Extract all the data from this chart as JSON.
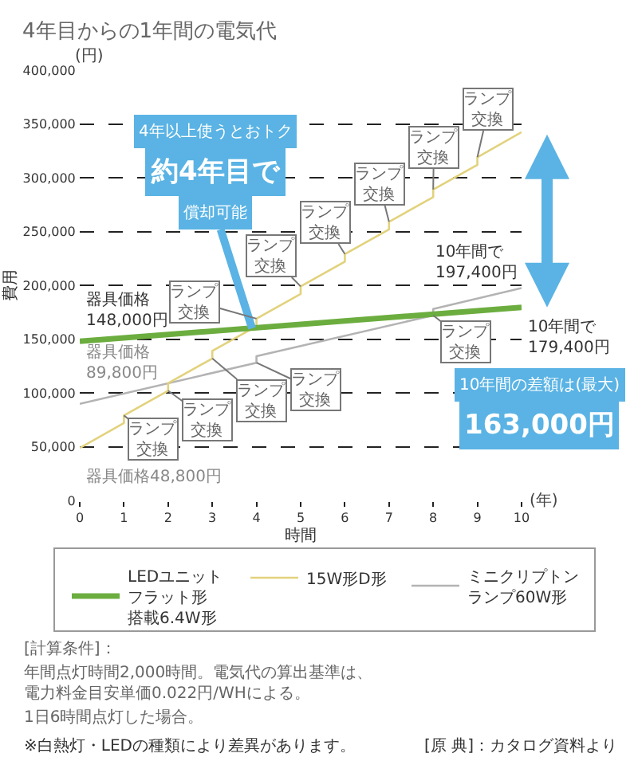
{
  "chart_data": {
    "type": "line",
    "title": "4年目からの1年間の電気代",
    "xlabel": "時間",
    "ylabel": "費用",
    "xlim": [
      0,
      10
    ],
    "xticks": [
      0,
      1,
      2,
      3,
      4,
      5,
      6,
      7,
      8,
      9,
      10
    ],
    "ylim": [
      0,
      400000
    ],
    "yticks": [
      0,
      {
        "value": 50000,
        "label": "50,000"
      },
      {
        "value": 100000,
        "label": "100,000"
      },
      {
        "value": 150000,
        "label": "150,000"
      },
      {
        "value": 200000,
        "label": "200,000"
      },
      {
        "value": 250000,
        "label": "250,000"
      },
      {
        "value": 300000,
        "label": "300,000"
      },
      {
        "value": 350000,
        "label": "350,000"
      },
      {
        "value": 400000,
        "label": "400,000"
      }
    ],
    "grid": "y",
    "legend": "bottom",
    "series": [
      {
        "name": "LEDユニットフラット形搭載6.4W形",
        "color": "#6cad3f",
        "x": [
          0,
          10
        ],
        "values": [
          148000,
          179400
        ]
      },
      {
        "name": "15W形D形",
        "color": "#e2d27c",
        "x": [
          0,
          1,
          1,
          2,
          2,
          3,
          3,
          4,
          4,
          5,
          5,
          6,
          6,
          7,
          7,
          8,
          8,
          9,
          9,
          10
        ],
        "values": [
          48800,
          72000,
          79000,
          102000,
          109000,
          132000,
          139000,
          162000,
          169000,
          192000,
          199000,
          222000,
          229000,
          252000,
          259000,
          282000,
          289000,
          312000,
          319000,
          342400
        ]
      },
      {
        "name": "ミニクリプトンランプ60W形",
        "color": "#b3b3b3",
        "x": [
          0,
          4,
          4,
          8,
          8,
          10
        ],
        "values": [
          89800,
          128000,
          134000,
          172000,
          178000,
          197400
        ]
      }
    ],
    "annotations": [
      {
        "text": "器具価格148,000円",
        "x": 0,
        "y": 148000
      },
      {
        "text": "器具価格89,800円",
        "x": 0,
        "y": 89800
      },
      {
        "text": "器具価格48,800円",
        "x": 0,
        "y": 48800
      },
      {
        "text": "10年間で197,400円",
        "x": 10,
        "y": 197400
      },
      {
        "text": "10年間で179,400円",
        "x": 10,
        "y": 179400
      },
      "4年以上使うとおトク",
      "約4年目で",
      {
        "text": "償却可能",
        "x": 3.9,
        "y": 160000
      },
      {
        "text": "ランプ交換",
        "x": 1,
        "y": 79000
      },
      {
        "text": "ランプ交換",
        "x": 2,
        "y": 102000
      },
      {
        "text": "ランプ交換",
        "x": 3,
        "y": 132000
      },
      {
        "text": "ランプ交換",
        "x": 4,
        "y": 128000
      },
      {
        "text": "ランプ交換",
        "x": 5,
        "y": 199000
      },
      {
        "text": "ランプ交換",
        "x": 4,
        "y": 169000
      },
      {
        "text": "ランプ交換",
        "x": 6,
        "y": 229000
      },
      {
        "text": "ランプ交換",
        "x": 7,
        "y": 259000
      },
      {
        "text": "ランプ交換",
        "x": 8,
        "y": 289000
      },
      {
        "text": "ランプ交換",
        "x": 9,
        "y": 319000
      },
      {
        "text": "ランプ交換",
        "x": 8,
        "y": 172000
      },
      "10年間の差額は(最大)",
      "163,000円",
      "(円)",
      "(年)",
      "[計算条件]：",
      "年間点灯時間2,000時間。電気代の算出基準は、電力料金目安単価0.022円/WHによる。",
      "1日6時間点灯した場合。",
      "※白熱灯・LEDの種類により差異があります。",
      "[原 典]：カタログ資料より"
    ]
  }
}
